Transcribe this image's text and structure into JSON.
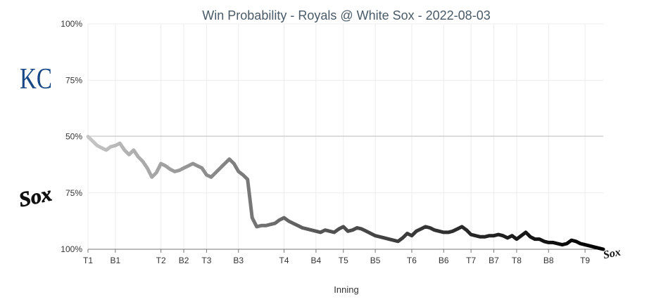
{
  "chart_data": {
    "type": "line",
    "title": "Win Probability - Royals @ White Sox - 2022-08-03",
    "xlabel": "Inning",
    "ylabel": "",
    "y_tick_labels": [
      "100%",
      "75%",
      "50%",
      "75%",
      "100%"
    ],
    "x_ticks": [
      {
        "label": "T1",
        "x": 0
      },
      {
        "label": "B1",
        "x": 6
      },
      {
        "label": "T2",
        "x": 16
      },
      {
        "label": "B2",
        "x": 21
      },
      {
        "label": "T3",
        "x": 26
      },
      {
        "label": "B3",
        "x": 33
      },
      {
        "label": "T4",
        "x": 43
      },
      {
        "label": "B4",
        "x": 50
      },
      {
        "label": "T5",
        "x": 56
      },
      {
        "label": "B5",
        "x": 63
      },
      {
        "label": "T6",
        "x": 71
      },
      {
        "label": "B6",
        "x": 78
      },
      {
        "label": "T7",
        "x": 84
      },
      {
        "label": "B7",
        "x": 89
      },
      {
        "label": "T8",
        "x": 94
      },
      {
        "label": "B8",
        "x": 101
      },
      {
        "label": "T9",
        "x": 109
      }
    ],
    "xlim": [
      0,
      113
    ],
    "ylim": [
      -50,
      50
    ],
    "grid": true,
    "series": [
      {
        "color_start": "#c6c6c6",
        "color_end": "#000000",
        "x": [
          0,
          1,
          2,
          3,
          4,
          5,
          6,
          7,
          8,
          9,
          10,
          11,
          12,
          13,
          14,
          15,
          16,
          17,
          18,
          19,
          20,
          21,
          22,
          23,
          24,
          25,
          26,
          27,
          28,
          29,
          30,
          31,
          32,
          33,
          34,
          35,
          36,
          37,
          38,
          39,
          40,
          41,
          42,
          43,
          44,
          45,
          46,
          47,
          48,
          49,
          50,
          51,
          52,
          53,
          54,
          55,
          56,
          57,
          58,
          59,
          60,
          61,
          62,
          63,
          64,
          65,
          66,
          67,
          68,
          69,
          70,
          71,
          72,
          73,
          74,
          75,
          76,
          77,
          78,
          79,
          80,
          81,
          82,
          83,
          84,
          85,
          86,
          87,
          88,
          89,
          90,
          91,
          92,
          93,
          94,
          95,
          96,
          97,
          98,
          99,
          100,
          101,
          102,
          103,
          104,
          105,
          106,
          107,
          108,
          109,
          110,
          111,
          112,
          113
        ],
        "y": [
          0,
          -2,
          -4,
          -5,
          -6,
          -4.5,
          -4,
          -3,
          -6,
          -8,
          -6,
          -9,
          -11,
          -14,
          -18,
          -16,
          -12,
          -13,
          -14.5,
          -15.5,
          -15,
          -14,
          -13,
          -12,
          -13,
          -14,
          -17,
          -18,
          -16,
          -14,
          -12,
          -10,
          -12,
          -15.5,
          -17,
          -19,
          -36,
          -40,
          -39.5,
          -39.5,
          -39,
          -38.5,
          -37,
          -36,
          -37.5,
          -38.5,
          -39.5,
          -40.5,
          -41,
          -41.5,
          -42,
          -42.5,
          -41.5,
          -42,
          -42.5,
          -41,
          -40,
          -42,
          -41.5,
          -40.5,
          -41,
          -42,
          -43,
          -44,
          -44.5,
          -45,
          -45.5,
          -46,
          -46.5,
          -45,
          -43,
          -44,
          -42,
          -41,
          -40,
          -40.5,
          -41.5,
          -42,
          -42.5,
          -42.5,
          -42,
          -41,
          -40,
          -41.5,
          -43.5,
          -44,
          -44.5,
          -44.5,
          -44,
          -44,
          -43.5,
          -44,
          -45,
          -44,
          -45.5,
          -44,
          -42.5,
          -44.5,
          -45.5,
          -45.5,
          -46.5,
          -47,
          -47,
          -47.5,
          -48,
          -47.5,
          -46,
          -46.5,
          -47.5,
          -48,
          -48.5,
          -49,
          -49.5,
          -50
        ]
      }
    ]
  },
  "logos": {
    "top_team": "KC",
    "bottom_team": "Sox"
  },
  "icons": {
    "top": "royals-logo-icon",
    "bottom": "white-sox-logo-icon",
    "end": "white-sox-small-logo-icon"
  }
}
